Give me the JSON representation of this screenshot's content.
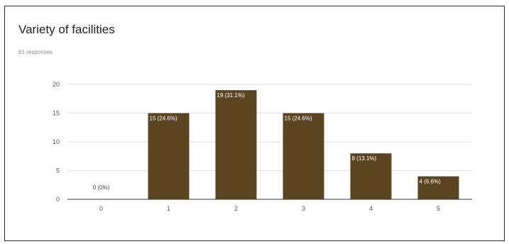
{
  "question": {
    "title": "Variety of facilities",
    "responses": "61 responses"
  },
  "colors": {
    "bar": "#5b4520",
    "grid": "#e2e2e2",
    "axis": "#333333",
    "label_on_bar": "#ffffff",
    "label_off_bar": "#444444"
  },
  "chart_data": {
    "type": "bar",
    "title": "Variety of facilities",
    "subtitle": "61 responses",
    "categories": [
      "0",
      "1",
      "2",
      "3",
      "4",
      "5"
    ],
    "values": [
      0,
      15,
      19,
      15,
      8,
      4
    ],
    "data_labels": [
      "0 (0%)",
      "15 (24.6%)",
      "19 (31.1%)",
      "15 (24.6%)",
      "8 (13.1%)",
      "4 (6.6%)"
    ],
    "y_ticks": [
      0,
      5,
      10,
      15,
      20
    ],
    "ylim": [
      0,
      20
    ],
    "xlabel": "",
    "ylabel": "",
    "grid": true,
    "legend": "none"
  }
}
